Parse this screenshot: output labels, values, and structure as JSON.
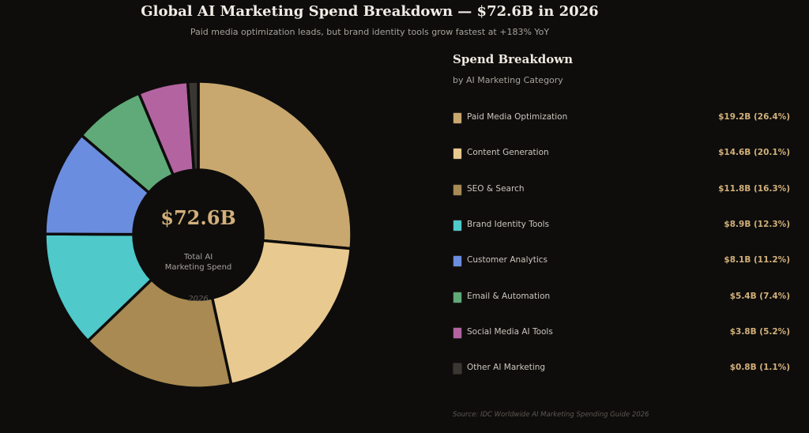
{
  "header": {
    "title": "Global AI Marketing Spend Breakdown — $72.6B in 2026",
    "subtitle": "Paid media optimization leads, but brand identity tools grow fastest at +183% YoY"
  },
  "center": {
    "value": "$72.6B",
    "label_line1": "Total AI",
    "label_line2": "Marketing Spend",
    "year": "2026"
  },
  "legend_panel": {
    "title": "Spend Breakdown",
    "subtitle": "by AI Marketing Category"
  },
  "source": "Source: IDC Worldwide AI Marketing Spending Guide 2026",
  "chart_data": {
    "type": "pie",
    "title": "Global AI Marketing Spend Breakdown — $72.6B in 2026",
    "total": 72.6,
    "unit": "$B",
    "slices": [
      {
        "label": "Paid Media Optimization",
        "value": 19.2,
        "share": 26.4,
        "display": "$19.2B  (26.4%)",
        "color": "#c8a86e"
      },
      {
        "label": "Content Generation",
        "value": 14.6,
        "share": 20.1,
        "display": "$14.6B  (20.1%)",
        "color": "#e8c98f"
      },
      {
        "label": "SEO & Search",
        "value": 11.8,
        "share": 16.3,
        "display": "$11.8B  (16.3%)",
        "color": "#a88a52"
      },
      {
        "label": "Brand Identity Tools",
        "value": 8.9,
        "share": 12.3,
        "display": "$8.9B  (12.3%)",
        "color": "#4fc9c9"
      },
      {
        "label": "Customer Analytics",
        "value": 8.1,
        "share": 11.2,
        "display": "$8.1B  (11.2%)",
        "color": "#6b8ddf"
      },
      {
        "label": "Email & Automation",
        "value": 5.4,
        "share": 7.4,
        "display": "$5.4B  (7.4%)",
        "color": "#5faa78"
      },
      {
        "label": "Social Media AI Tools",
        "value": 3.8,
        "share": 5.2,
        "display": "$3.8B  (5.2%)",
        "color": "#b463a1"
      },
      {
        "label": "Other AI Marketing",
        "value": 0.8,
        "share": 1.1,
        "display": "$0.8B  (1.1%)",
        "color": "#3a3732"
      }
    ]
  }
}
